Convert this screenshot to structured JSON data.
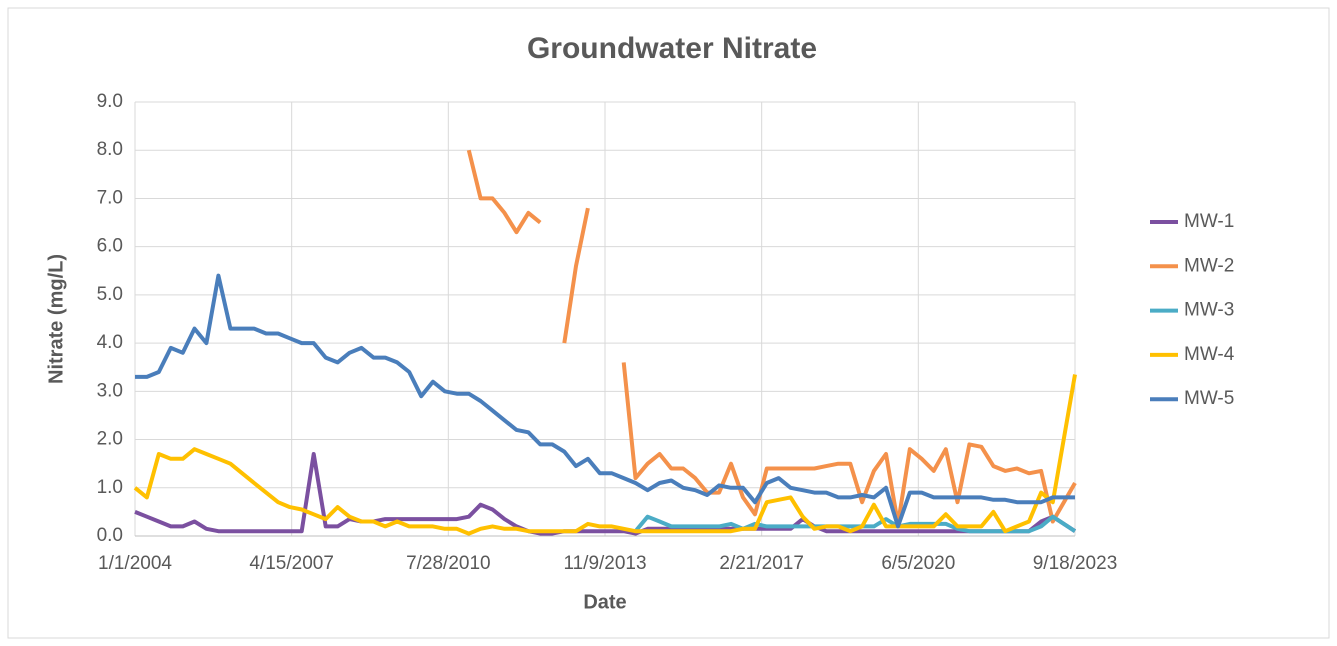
{
  "chart_data": {
    "type": "line",
    "title": "Groundwater Nitrate",
    "x_label": "Date",
    "y_label": "Nitrate  (mg/L)",
    "x": [
      "1/1/2004",
      "4/1/2004",
      "7/1/2004",
      "10/1/2004",
      "1/1/2005",
      "4/1/2005",
      "7/1/2005",
      "10/1/2005",
      "1/1/2006",
      "4/1/2006",
      "7/1/2006",
      "10/1/2006",
      "1/1/2007",
      "4/1/2007",
      "7/1/2007",
      "10/1/2007",
      "1/1/2008",
      "4/1/2008",
      "7/1/2008",
      "10/1/2008",
      "1/1/2009",
      "4/1/2009",
      "7/1/2009",
      "10/1/2009",
      "1/1/2010",
      "4/1/2010",
      "7/1/2010",
      "10/1/2010",
      "1/1/2011",
      "4/1/2011",
      "7/1/2011",
      "10/1/2011",
      "1/1/2012",
      "4/1/2012",
      "7/1/2012",
      "10/1/2012",
      "1/1/2013",
      "4/1/2013",
      "7/1/2013",
      "10/1/2013",
      "1/1/2014",
      "4/1/2014",
      "7/1/2014",
      "10/1/2014",
      "1/1/2015",
      "4/1/2015",
      "7/1/2015",
      "10/1/2015",
      "1/1/2016",
      "4/1/2016",
      "7/1/2016",
      "10/1/2016",
      "1/1/2017",
      "4/1/2017",
      "7/1/2017",
      "10/1/2017",
      "1/1/2018",
      "4/1/2018",
      "7/1/2018",
      "10/1/2018",
      "1/1/2019",
      "4/1/2019",
      "7/1/2019",
      "10/1/2019",
      "1/1/2020",
      "4/1/2020",
      "7/1/2020",
      "10/1/2020",
      "1/1/2021",
      "4/1/2021",
      "7/1/2021",
      "10/1/2021",
      "1/1/2022",
      "4/1/2022",
      "7/1/2022",
      "10/1/2022",
      "1/1/2023",
      "4/1/2023",
      "9/18/2023"
    ],
    "series": [
      {
        "name": "MW-1",
        "color": "#7b50a0",
        "values": [
          0.5,
          0.4,
          0.3,
          0.2,
          0.2,
          0.3,
          0.15,
          0.1,
          0.1,
          0.1,
          0.1,
          0.1,
          0.1,
          0.1,
          0.1,
          1.7,
          0.2,
          0.2,
          0.35,
          0.3,
          0.3,
          0.35,
          0.35,
          0.35,
          0.35,
          0.35,
          0.35,
          0.35,
          0.4,
          0.65,
          0.55,
          0.35,
          0.2,
          0.1,
          0.05,
          0.05,
          0.1,
          0.1,
          0.1,
          0.1,
          0.1,
          0.1,
          0.05,
          0.15,
          0.15,
          0.15,
          0.15,
          0.15,
          0.15,
          0.15,
          0.15,
          0.15,
          0.15,
          0.15,
          0.15,
          0.15,
          0.35,
          0.2,
          0.1,
          0.1,
          0.1,
          0.1,
          0.1,
          0.1,
          0.1,
          0.1,
          0.1,
          0.1,
          0.1,
          0.1,
          0.1,
          0.1,
          0.1,
          0.1,
          0.1,
          0.1,
          0.3,
          0.4,
          0.1
        ]
      },
      {
        "name": "MW-2",
        "color": "#f4914b",
        "values": [
          null,
          null,
          null,
          null,
          null,
          null,
          null,
          null,
          null,
          null,
          null,
          null,
          null,
          null,
          null,
          null,
          null,
          null,
          null,
          null,
          null,
          null,
          null,
          null,
          null,
          null,
          null,
          null,
          8.0,
          7.0,
          7.0,
          6.7,
          6.3,
          6.7,
          6.5,
          null,
          4.0,
          5.6,
          6.8,
          null,
          null,
          3.6,
          1.2,
          1.5,
          1.7,
          1.4,
          1.4,
          1.2,
          0.9,
          0.9,
          1.5,
          0.8,
          0.45,
          1.4,
          1.4,
          1.4,
          1.4,
          1.4,
          1.45,
          1.5,
          1.5,
          0.7,
          1.35,
          1.7,
          0.25,
          1.8,
          1.6,
          1.35,
          1.8,
          0.7,
          1.9,
          1.85,
          1.45,
          1.35,
          1.4,
          1.3,
          1.35,
          0.3,
          1.1
        ]
      },
      {
        "name": "MW-3",
        "color": "#4bacc6",
        "values": [
          null,
          null,
          null,
          null,
          null,
          null,
          null,
          null,
          null,
          null,
          null,
          null,
          null,
          null,
          null,
          null,
          null,
          null,
          null,
          null,
          null,
          null,
          null,
          null,
          null,
          null,
          null,
          null,
          null,
          null,
          null,
          null,
          null,
          null,
          null,
          null,
          null,
          null,
          null,
          null,
          null,
          null,
          0.1,
          0.4,
          0.3,
          0.2,
          0.2,
          0.2,
          0.2,
          0.2,
          0.25,
          0.15,
          0.25,
          0.2,
          0.2,
          0.2,
          0.2,
          0.2,
          0.2,
          0.2,
          0.2,
          0.2,
          0.2,
          0.35,
          0.2,
          0.25,
          0.25,
          0.25,
          0.25,
          0.15,
          0.1,
          0.1,
          0.1,
          0.1,
          0.1,
          0.1,
          0.2,
          0.4,
          0.1
        ]
      },
      {
        "name": "MW-4",
        "color": "#ffc000",
        "values": [
          1.0,
          0.8,
          1.7,
          1.6,
          1.6,
          1.8,
          1.7,
          1.6,
          1.5,
          1.3,
          1.1,
          0.9,
          0.7,
          0.6,
          0.55,
          0.45,
          0.35,
          0.6,
          0.4,
          0.3,
          0.3,
          0.2,
          0.3,
          0.2,
          0.2,
          0.2,
          0.15,
          0.15,
          0.05,
          0.15,
          0.2,
          0.15,
          0.15,
          0.1,
          0.1,
          0.1,
          0.1,
          0.1,
          0.25,
          0.2,
          0.2,
          0.15,
          0.1,
          0.1,
          0.1,
          0.1,
          0.1,
          0.1,
          0.1,
          0.1,
          0.1,
          0.15,
          0.15,
          0.7,
          0.75,
          0.8,
          0.4,
          0.15,
          0.2,
          0.2,
          0.1,
          0.2,
          0.65,
          0.2,
          0.2,
          0.2,
          0.2,
          0.2,
          0.45,
          0.2,
          0.2,
          0.2,
          0.5,
          0.1,
          0.2,
          0.3,
          0.9,
          0.7,
          3.35
        ]
      },
      {
        "name": "MW-5",
        "color": "#4a7ebb",
        "values": [
          3.3,
          3.3,
          3.4,
          3.9,
          3.8,
          4.3,
          4.0,
          5.4,
          4.3,
          4.3,
          4.3,
          4.2,
          4.2,
          4.1,
          4.0,
          4.0,
          3.7,
          3.6,
          3.8,
          3.9,
          3.7,
          3.7,
          3.6,
          3.4,
          2.9,
          3.2,
          3.0,
          2.95,
          2.95,
          2.8,
          2.6,
          2.4,
          2.2,
          2.15,
          1.9,
          1.9,
          1.75,
          1.45,
          1.6,
          1.3,
          1.3,
          1.2,
          1.1,
          0.95,
          1.1,
          1.15,
          1.0,
          0.95,
          0.85,
          1.05,
          1.0,
          1.0,
          0.7,
          1.1,
          1.2,
          1.0,
          0.95,
          0.9,
          0.9,
          0.8,
          0.8,
          0.85,
          0.8,
          1.0,
          0.2,
          0.9,
          0.9,
          0.8,
          0.8,
          0.8,
          0.8,
          0.8,
          0.75,
          0.75,
          0.7,
          0.7,
          0.7,
          0.8,
          0.8
        ]
      }
    ],
    "xlim": [
      "1/1/2004",
      "9/18/2023"
    ],
    "xticks": [
      "1/1/2004",
      "4/15/2007",
      "7/28/2010",
      "11/9/2013",
      "2/21/2017",
      "6/5/2020",
      "9/18/2023"
    ],
    "ylim": [
      0,
      9
    ],
    "yticks": [
      {
        "value": 0,
        "label": "0.0"
      },
      {
        "value": 1,
        "label": "1.0"
      },
      {
        "value": 2,
        "label": "2.0"
      },
      {
        "value": 3,
        "label": "3.0"
      },
      {
        "value": 4,
        "label": "4.0"
      },
      {
        "value": 5,
        "label": "5.0"
      },
      {
        "value": 6,
        "label": "6.0"
      },
      {
        "value": 7,
        "label": "7.0"
      },
      {
        "value": 8,
        "label": "8.0"
      },
      {
        "value": 9,
        "label": "9.0"
      }
    ],
    "grid": true,
    "legend": "right"
  }
}
